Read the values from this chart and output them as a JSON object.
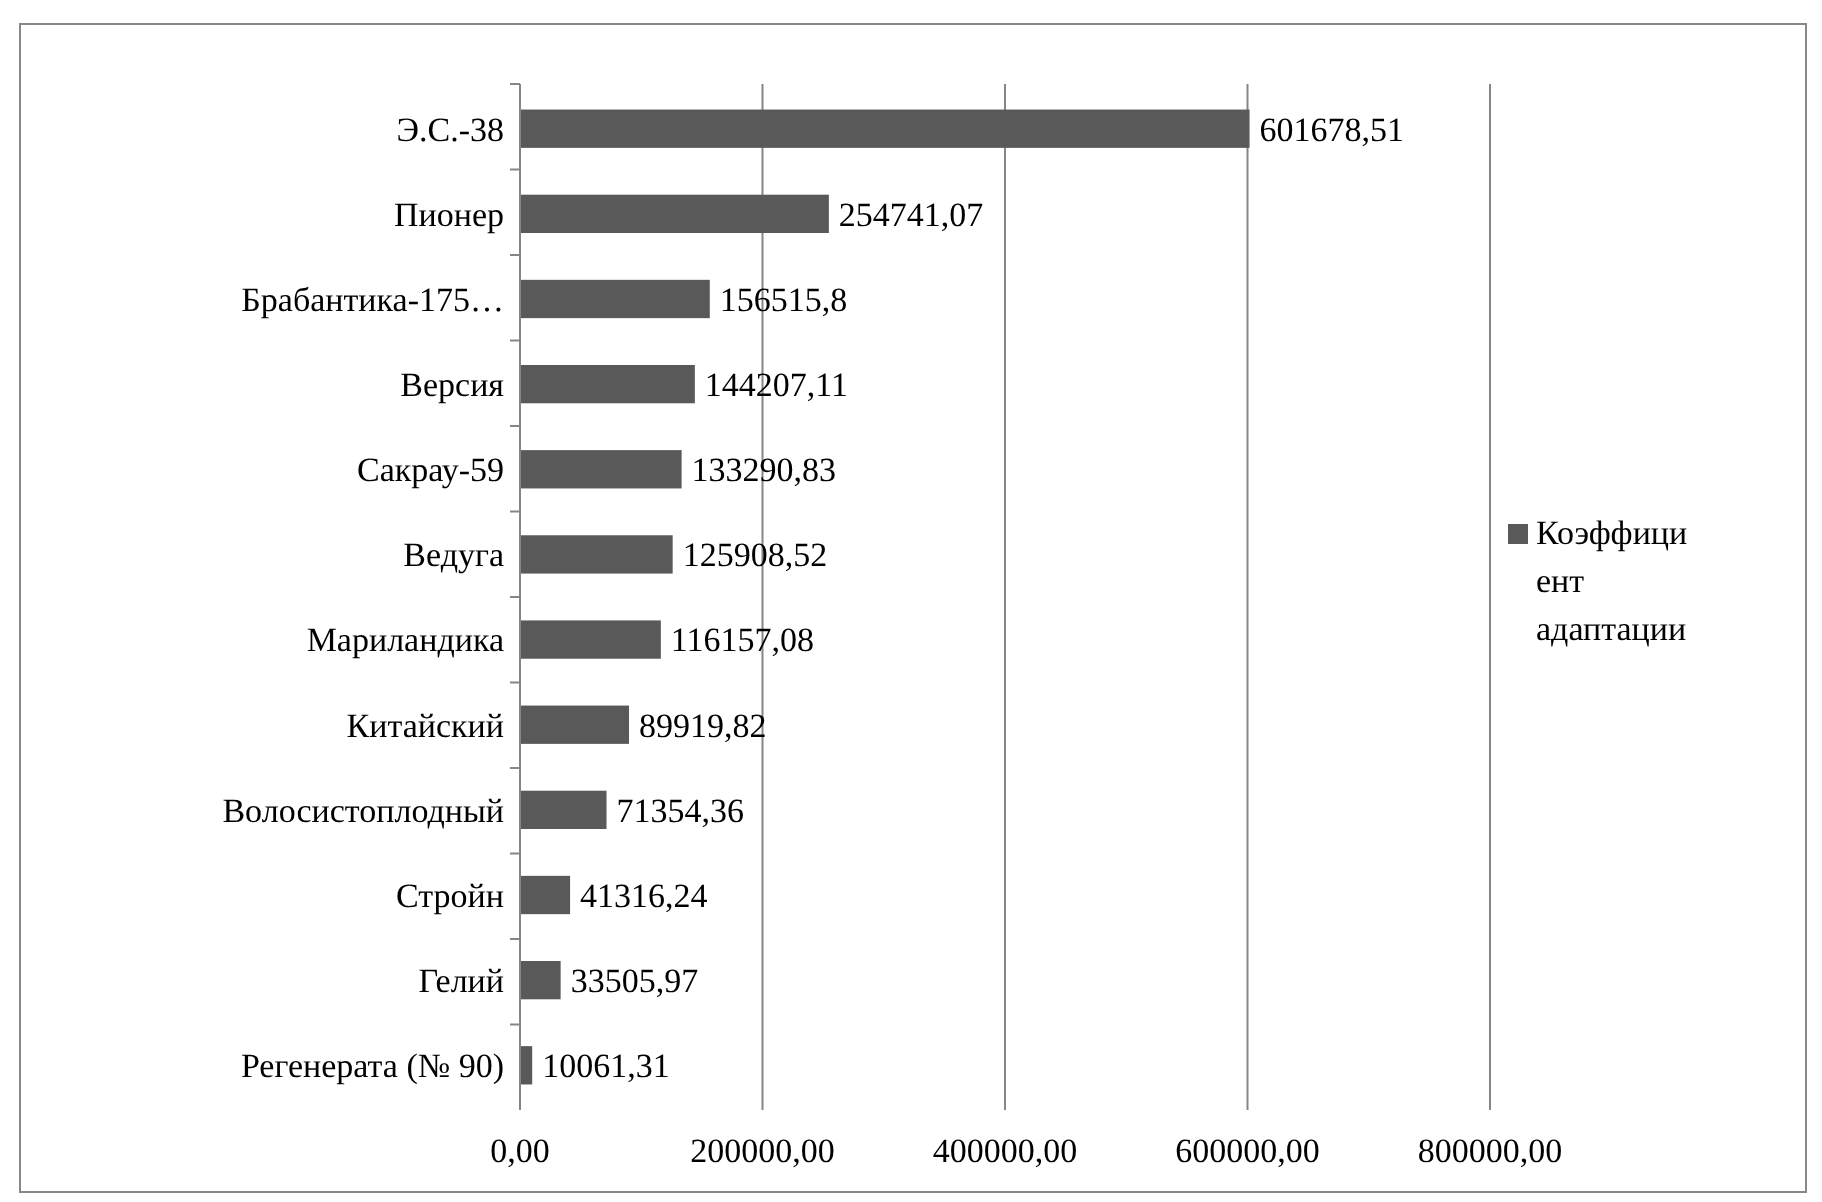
{
  "chart_data": {
    "type": "bar",
    "orientation": "horizontal",
    "categories": [
      "Э.С.-38",
      "Пионер",
      "Брабантика-175…",
      "Версия",
      "Сакрау-59",
      "Ведуга",
      "Мариландика",
      "Китайский",
      "Волосистоплодный",
      "Стройн",
      "Гелий",
      "Регенерата (№ 90)"
    ],
    "series": [
      {
        "name": "Коэффициент адаптации",
        "color": "#595959",
        "values": [
          601678.51,
          254741.07,
          156515.8,
          144207.11,
          133290.83,
          125908.52,
          116157.08,
          89919.82,
          71354.36,
          41316.24,
          33505.97,
          10061.31
        ],
        "value_labels": [
          "601678,51",
          "254741,07",
          "156515,8",
          "144207,11",
          "133290,83",
          "125908,52",
          "116157,08",
          "89919,82",
          "71354,36",
          "41316,24",
          "33505,97",
          "10061,31"
        ]
      }
    ],
    "xlim": [
      0,
      800000
    ],
    "xticks": [
      {
        "value": 0,
        "label": "0,00"
      },
      {
        "value": 200000,
        "label": "200000,00"
      },
      {
        "value": 400000,
        "label": "400000,00"
      },
      {
        "value": 600000,
        "label": "600000,00"
      },
      {
        "value": 800000,
        "label": "800000,00"
      }
    ],
    "grid": "x",
    "legend": "right"
  }
}
